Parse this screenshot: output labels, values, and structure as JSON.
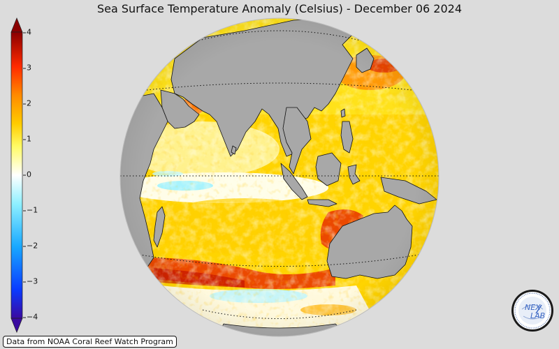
{
  "title": "Sea Surface Temperature Anomaly (Celsius) - December 06 2024",
  "colorbar": {
    "min": -4,
    "max": 4,
    "ticks": [
      "4",
      "3",
      "2",
      "1",
      "0",
      "−1",
      "−2",
      "−3",
      "−4"
    ],
    "colors": [
      "#3a0aa0",
      "#0a3bff",
      "#18a8ff",
      "#8ff0ff",
      "#ffffff",
      "#fffb66",
      "#ffcc00",
      "#ff8a00",
      "#ff2a00",
      "#c00000",
      "#8a0000"
    ]
  },
  "map": {
    "ocean_colors": {
      "warm": "#ffd400",
      "hot": "#e83000",
      "cool": "#9ef2ff",
      "neutral": "#fffbe8"
    },
    "land_color": "#a8a8a8",
    "regions": [
      "Asia",
      "Africa",
      "Australia",
      "Indian Ocean",
      "Maritime Continent"
    ]
  },
  "source_text": "Data from NOAA Coral Reef Watch Program",
  "logo": {
    "text_main": "NEX",
    "text_sub": "LAB",
    "ring_text": ""
  }
}
